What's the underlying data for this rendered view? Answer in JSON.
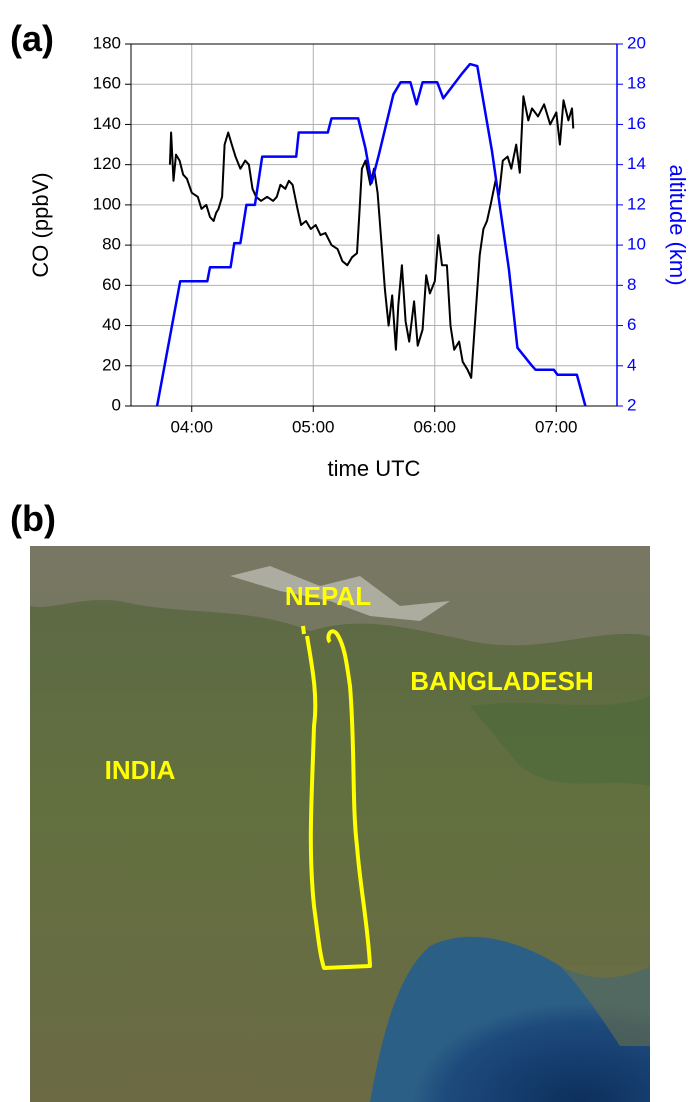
{
  "chart_data": {
    "type": "line",
    "panel_label": "(a)",
    "xlabel": "time UTC",
    "ylabel": "CO (ppbV)",
    "y2label": "altitude (km)",
    "xlim": [
      3.5,
      7.5
    ],
    "xticks": [
      {
        "value": 4,
        "label": "04:00"
      },
      {
        "value": 5,
        "label": "05:00"
      },
      {
        "value": 6,
        "label": "06:00"
      },
      {
        "value": 7,
        "label": "07:00"
      }
    ],
    "ylim": [
      0,
      180
    ],
    "yticks": [
      0,
      20,
      40,
      60,
      80,
      100,
      120,
      140,
      160,
      180
    ],
    "y2lim": [
      2,
      20
    ],
    "y2ticks": [
      2,
      4,
      6,
      8,
      10,
      12,
      14,
      16,
      18,
      20
    ],
    "y2color": "#0000ff",
    "grid": true,
    "series": [
      {
        "color": "#000000",
        "axis": "y",
        "x": [
          3.82,
          3.83,
          3.85,
          3.87,
          3.9,
          3.93,
          3.96,
          4.0,
          4.05,
          4.08,
          4.12,
          4.15,
          4.18,
          4.2,
          4.22,
          4.25,
          4.27,
          4.3,
          4.33,
          4.36,
          4.4,
          4.44,
          4.47,
          4.5,
          4.53,
          4.57,
          4.62,
          4.67,
          4.7,
          4.73,
          4.77,
          4.8,
          4.83,
          4.87,
          4.9,
          4.94,
          4.98,
          5.02,
          5.06,
          5.1,
          5.15,
          5.2,
          5.24,
          5.28,
          5.32,
          5.36,
          5.38,
          5.4,
          5.43,
          5.47,
          5.5,
          5.53,
          5.56,
          5.59,
          5.62,
          5.65,
          5.68,
          5.7,
          5.73,
          5.76,
          5.79,
          5.83,
          5.86,
          5.9,
          5.93,
          5.96,
          6.0,
          6.03,
          6.06,
          6.1,
          6.13,
          6.16,
          6.2,
          6.23,
          6.27,
          6.3,
          6.33,
          6.37,
          6.4,
          6.43,
          6.46,
          6.5,
          6.53,
          6.56,
          6.6,
          6.63,
          6.67,
          6.7,
          6.73,
          6.77,
          6.8,
          6.85,
          6.9,
          6.95,
          7.0,
          7.03,
          7.06,
          7.1,
          7.13,
          7.14
        ],
        "values": [
          120,
          136,
          112,
          125,
          122,
          115,
          113,
          106,
          104,
          98,
          100,
          94,
          92,
          96,
          98,
          104,
          130,
          136,
          130,
          124,
          118,
          122,
          120,
          108,
          104,
          102,
          104,
          102,
          104,
          110,
          108,
          112,
          110,
          98,
          90,
          92,
          88,
          90,
          85,
          86,
          80,
          78,
          72,
          70,
          74,
          76,
          96,
          118,
          122,
          110,
          118,
          106,
          82,
          58,
          40,
          55,
          28,
          50,
          70,
          42,
          32,
          52,
          30,
          38,
          65,
          56,
          62,
          85,
          70,
          70,
          40,
          28,
          32,
          22,
          18,
          14,
          40,
          75,
          88,
          92,
          100,
          112,
          105,
          122,
          124,
          118,
          130,
          116,
          154,
          142,
          148,
          144,
          150,
          140,
          146,
          130,
          152,
          142,
          148,
          138
        ]
      },
      {
        "color": "#0000ff",
        "axis": "y2",
        "x": [
          3.715,
          3.905,
          4.128,
          4.15,
          4.32,
          4.35,
          4.4,
          4.45,
          4.52,
          4.58,
          4.86,
          4.88,
          5.12,
          5.15,
          5.37,
          5.43,
          5.48,
          5.54,
          5.66,
          5.72,
          5.8,
          5.85,
          5.9,
          6.02,
          6.07,
          6.22,
          6.29,
          6.35,
          6.47,
          6.61,
          6.68,
          6.8,
          6.83,
          6.98,
          7.01,
          7.17,
          7.24
        ],
        "values": [
          2,
          8.2,
          8.2,
          8.9,
          8.9,
          10.1,
          10.1,
          12,
          12,
          14.4,
          14.4,
          15.6,
          15.6,
          16.3,
          16.3,
          14.8,
          13.1,
          14.5,
          17.5,
          18.1,
          18.1,
          17,
          18.1,
          18.1,
          17.3,
          18.5,
          19,
          18.9,
          14.7,
          8.8,
          4.9,
          4.0,
          3.8,
          3.8,
          3.55,
          3.55,
          2
        ]
      }
    ]
  },
  "map": {
    "panel_label": "(b)",
    "labels": [
      "NEPAL",
      "BANGLADESH",
      "INDIA"
    ]
  }
}
